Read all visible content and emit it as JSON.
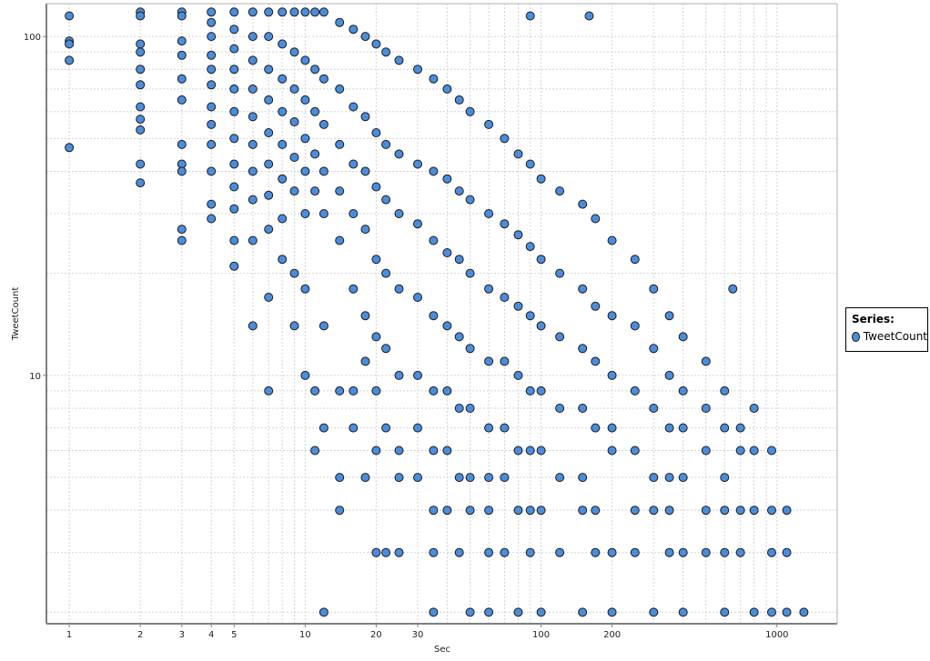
{
  "chart_data": {
    "type": "scatter",
    "title": "",
    "xlabel": "Sec",
    "ylabel": "TweetCount",
    "xscale": "log",
    "yscale": "log",
    "xlim": [
      0.8,
      1800
    ],
    "ylim": [
      1.85,
      125
    ],
    "x_ticks": [
      "1",
      "2",
      "3",
      "4",
      "5",
      "10",
      "20",
      "30",
      "100",
      "200",
      "1000"
    ],
    "y_ticks": [
      "10",
      "100"
    ],
    "grid": true,
    "legend": {
      "title": "Series:",
      "position": "right"
    },
    "colors": {
      "marker": "#4a8ddc",
      "marker_edge": "#1a1a1a"
    },
    "series": [
      {
        "name": "TweetCount",
        "points": [
          [
            1,
            115
          ],
          [
            1,
            97
          ],
          [
            1,
            95
          ],
          [
            1,
            85
          ],
          [
            1,
            47
          ],
          [
            2,
            118
          ],
          [
            2,
            115
          ],
          [
            2,
            95
          ],
          [
            2,
            90
          ],
          [
            2,
            80
          ],
          [
            2,
            72
          ],
          [
            2,
            62
          ],
          [
            2,
            57
          ],
          [
            2,
            53
          ],
          [
            2,
            42
          ],
          [
            2,
            37
          ],
          [
            3,
            118
          ],
          [
            3,
            115
          ],
          [
            3,
            97
          ],
          [
            3,
            88
          ],
          [
            3,
            75
          ],
          [
            3,
            65
          ],
          [
            3,
            48
          ],
          [
            3,
            42
          ],
          [
            3,
            40
          ],
          [
            3,
            27
          ],
          [
            3,
            25
          ],
          [
            4,
            118
          ],
          [
            4,
            110
          ],
          [
            4,
            100
          ],
          [
            4,
            88
          ],
          [
            4,
            80
          ],
          [
            4,
            72
          ],
          [
            4,
            62
          ],
          [
            4,
            55
          ],
          [
            4,
            48
          ],
          [
            4,
            40
          ],
          [
            4,
            32
          ],
          [
            4,
            29
          ],
          [
            5,
            118
          ],
          [
            5,
            105
          ],
          [
            5,
            92
          ],
          [
            5,
            80
          ],
          [
            5,
            70
          ],
          [
            5,
            60
          ],
          [
            5,
            50
          ],
          [
            5,
            42
          ],
          [
            5,
            36
          ],
          [
            5,
            31
          ],
          [
            5,
            25
          ],
          [
            5,
            21
          ],
          [
            6,
            118
          ],
          [
            6,
            100
          ],
          [
            6,
            85
          ],
          [
            6,
            70
          ],
          [
            6,
            58
          ],
          [
            6,
            48
          ],
          [
            6,
            40
          ],
          [
            6,
            33
          ],
          [
            6,
            25
          ],
          [
            6,
            14
          ],
          [
            7,
            118
          ],
          [
            7,
            100
          ],
          [
            7,
            80
          ],
          [
            7,
            65
          ],
          [
            7,
            52
          ],
          [
            7,
            42
          ],
          [
            7,
            34
          ],
          [
            7,
            27
          ],
          [
            7,
            17
          ],
          [
            7,
            9
          ],
          [
            8,
            118
          ],
          [
            8,
            95
          ],
          [
            8,
            75
          ],
          [
            8,
            60
          ],
          [
            8,
            48
          ],
          [
            8,
            38
          ],
          [
            8,
            29
          ],
          [
            8,
            22
          ],
          [
            9,
            118
          ],
          [
            9,
            90
          ],
          [
            9,
            70
          ],
          [
            9,
            56
          ],
          [
            9,
            44
          ],
          [
            9,
            35
          ],
          [
            9,
            20
          ],
          [
            9,
            14
          ],
          [
            10,
            118
          ],
          [
            10,
            85
          ],
          [
            10,
            65
          ],
          [
            10,
            50
          ],
          [
            10,
            40
          ],
          [
            10,
            30
          ],
          [
            10,
            18
          ],
          [
            10,
            10
          ],
          [
            11,
            118
          ],
          [
            11,
            80
          ],
          [
            11,
            60
          ],
          [
            11,
            45
          ],
          [
            11,
            35
          ],
          [
            11,
            9
          ],
          [
            11,
            6
          ],
          [
            12,
            118
          ],
          [
            12,
            75
          ],
          [
            12,
            55
          ],
          [
            12,
            40
          ],
          [
            12,
            30
          ],
          [
            12,
            14
          ],
          [
            12,
            7
          ],
          [
            12,
            2
          ],
          [
            14,
            110
          ],
          [
            14,
            70
          ],
          [
            14,
            48
          ],
          [
            14,
            35
          ],
          [
            14,
            25
          ],
          [
            14,
            9
          ],
          [
            14,
            5
          ],
          [
            14,
            4
          ],
          [
            16,
            105
          ],
          [
            16,
            62
          ],
          [
            16,
            42
          ],
          [
            16,
            30
          ],
          [
            16,
            18
          ],
          [
            16,
            9
          ],
          [
            16,
            7
          ],
          [
            18,
            100
          ],
          [
            18,
            58
          ],
          [
            18,
            40
          ],
          [
            18,
            27
          ],
          [
            18,
            15
          ],
          [
            18,
            11
          ],
          [
            18,
            5
          ],
          [
            20,
            95
          ],
          [
            20,
            52
          ],
          [
            20,
            36
          ],
          [
            20,
            22
          ],
          [
            20,
            13
          ],
          [
            20,
            9
          ],
          [
            20,
            6
          ],
          [
            20,
            3
          ],
          [
            22,
            90
          ],
          [
            22,
            48
          ],
          [
            22,
            33
          ],
          [
            22,
            20
          ],
          [
            22,
            12
          ],
          [
            22,
            7
          ],
          [
            22,
            3
          ],
          [
            25,
            85
          ],
          [
            25,
            45
          ],
          [
            25,
            30
          ],
          [
            25,
            18
          ],
          [
            25,
            10
          ],
          [
            25,
            6
          ],
          [
            25,
            5
          ],
          [
            25,
            3
          ],
          [
            30,
            80
          ],
          [
            30,
            42
          ],
          [
            30,
            28
          ],
          [
            30,
            17
          ],
          [
            30,
            10
          ],
          [
            30,
            7
          ],
          [
            30,
            5
          ],
          [
            35,
            75
          ],
          [
            35,
            40
          ],
          [
            35,
            25
          ],
          [
            35,
            15
          ],
          [
            35,
            9
          ],
          [
            35,
            6
          ],
          [
            35,
            4
          ],
          [
            35,
            3
          ],
          [
            35,
            2
          ],
          [
            40,
            70
          ],
          [
            40,
            38
          ],
          [
            40,
            23
          ],
          [
            40,
            14
          ],
          [
            40,
            9
          ],
          [
            40,
            6
          ],
          [
            40,
            4
          ],
          [
            45,
            65
          ],
          [
            45,
            35
          ],
          [
            45,
            22
          ],
          [
            45,
            13
          ],
          [
            45,
            8
          ],
          [
            45,
            5
          ],
          [
            45,
            3
          ],
          [
            50,
            60
          ],
          [
            50,
            33
          ],
          [
            50,
            20
          ],
          [
            50,
            12
          ],
          [
            50,
            8
          ],
          [
            50,
            5
          ],
          [
            50,
            4
          ],
          [
            50,
            2
          ],
          [
            60,
            55
          ],
          [
            60,
            30
          ],
          [
            60,
            18
          ],
          [
            60,
            11
          ],
          [
            60,
            7
          ],
          [
            60,
            5
          ],
          [
            60,
            4
          ],
          [
            60,
            3
          ],
          [
            60,
            2
          ],
          [
            70,
            50
          ],
          [
            70,
            28
          ],
          [
            70,
            17
          ],
          [
            70,
            11
          ],
          [
            70,
            7
          ],
          [
            70,
            5
          ],
          [
            70,
            3
          ],
          [
            80,
            45
          ],
          [
            80,
            26
          ],
          [
            80,
            16
          ],
          [
            80,
            10
          ],
          [
            80,
            6
          ],
          [
            80,
            4
          ],
          [
            80,
            2
          ],
          [
            90,
            115
          ],
          [
            90,
            42
          ],
          [
            90,
            24
          ],
          [
            90,
            15
          ],
          [
            90,
            9
          ],
          [
            90,
            6
          ],
          [
            90,
            4
          ],
          [
            90,
            3
          ],
          [
            100,
            38
          ],
          [
            100,
            22
          ],
          [
            100,
            14
          ],
          [
            100,
            9
          ],
          [
            100,
            6
          ],
          [
            100,
            4
          ],
          [
            100,
            2
          ],
          [
            120,
            35
          ],
          [
            120,
            20
          ],
          [
            120,
            13
          ],
          [
            120,
            8
          ],
          [
            120,
            5
          ],
          [
            120,
            3
          ],
          [
            150,
            32
          ],
          [
            150,
            18
          ],
          [
            150,
            12
          ],
          [
            150,
            8
          ],
          [
            150,
            5
          ],
          [
            150,
            4
          ],
          [
            150,
            2
          ],
          [
            160,
            115
          ],
          [
            170,
            29
          ],
          [
            170,
            16
          ],
          [
            170,
            11
          ],
          [
            170,
            7
          ],
          [
            170,
            4
          ],
          [
            170,
            3
          ],
          [
            200,
            25
          ],
          [
            200,
            15
          ],
          [
            200,
            10
          ],
          [
            200,
            7
          ],
          [
            200,
            6
          ],
          [
            200,
            3
          ],
          [
            200,
            2
          ],
          [
            250,
            22
          ],
          [
            250,
            14
          ],
          [
            250,
            9
          ],
          [
            250,
            6
          ],
          [
            250,
            4
          ],
          [
            250,
            3
          ],
          [
            300,
            18
          ],
          [
            300,
            12
          ],
          [
            300,
            8
          ],
          [
            300,
            5
          ],
          [
            300,
            4
          ],
          [
            300,
            2
          ],
          [
            350,
            15
          ],
          [
            350,
            10
          ],
          [
            350,
            7
          ],
          [
            350,
            5
          ],
          [
            350,
            4
          ],
          [
            350,
            3
          ],
          [
            400,
            13
          ],
          [
            400,
            9
          ],
          [
            400,
            7
          ],
          [
            400,
            5
          ],
          [
            400,
            3
          ],
          [
            400,
            2
          ],
          [
            500,
            11
          ],
          [
            500,
            8
          ],
          [
            500,
            6
          ],
          [
            500,
            4
          ],
          [
            500,
            3
          ],
          [
            600,
            9
          ],
          [
            600,
            7
          ],
          [
            600,
            5
          ],
          [
            600,
            4
          ],
          [
            600,
            3
          ],
          [
            600,
            2
          ],
          [
            650,
            18
          ],
          [
            700,
            7
          ],
          [
            700,
            6
          ],
          [
            700,
            4
          ],
          [
            700,
            3
          ],
          [
            800,
            8
          ],
          [
            800,
            6
          ],
          [
            800,
            4
          ],
          [
            800,
            2
          ],
          [
            950,
            6
          ],
          [
            950,
            4
          ],
          [
            950,
            3
          ],
          [
            950,
            2
          ],
          [
            1100,
            4
          ],
          [
            1100,
            3
          ],
          [
            1100,
            2
          ],
          [
            1300,
            2
          ]
        ]
      }
    ]
  }
}
